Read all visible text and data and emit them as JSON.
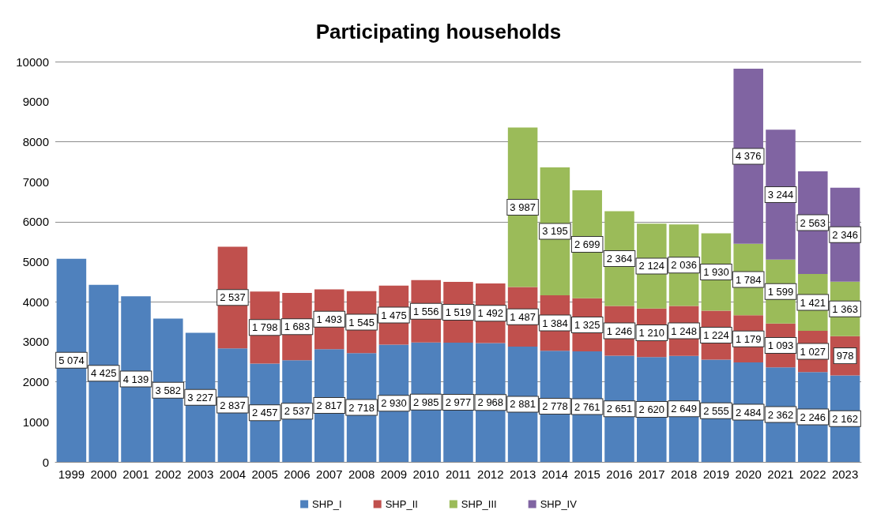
{
  "chart_data": {
    "type": "bar",
    "title": "Participating households",
    "stacked": true,
    "categories": [
      "1999",
      "2000",
      "2001",
      "2002",
      "2003",
      "2004",
      "2005",
      "2006",
      "2007",
      "2008",
      "2009",
      "2010",
      "2011",
      "2012",
      "2013",
      "2014",
      "2015",
      "2016",
      "2017",
      "2018",
      "2019",
      "2020",
      "2021",
      "2022",
      "2023"
    ],
    "series": [
      {
        "name": "SHP_I",
        "color": "#4f81bd",
        "values": [
          5074,
          4425,
          4139,
          3582,
          3227,
          2837,
          2457,
          2537,
          2817,
          2718,
          2930,
          2985,
          2977,
          2968,
          2881,
          2778,
          2761,
          2651,
          2620,
          2649,
          2555,
          2484,
          2362,
          2246,
          2162
        ],
        "value_labels": [
          "5 074",
          "4 425",
          "4 139",
          "3 582",
          "3 227",
          "2 837",
          "2 457",
          "2 537",
          "2 817",
          "2 718",
          "2 930",
          "2 985",
          "2 977",
          "2 968",
          "2 881",
          "2 778",
          "2 761",
          "2 651",
          "2 620",
          "2 649",
          "2 555",
          "2 484",
          "2 362",
          "2 246",
          "2 162"
        ]
      },
      {
        "name": "SHP_II",
        "color": "#c0504d",
        "values": [
          null,
          null,
          null,
          null,
          null,
          2537,
          1798,
          1683,
          1493,
          1545,
          1475,
          1556,
          1519,
          1492,
          1487,
          1384,
          1325,
          1246,
          1210,
          1248,
          1224,
          1179,
          1093,
          1027,
          978
        ],
        "value_labels": [
          null,
          null,
          null,
          null,
          null,
          "2 537",
          "1 798",
          "1 683",
          "1 493",
          "1 545",
          "1 475",
          "1 556",
          "1 519",
          "1 492",
          "1 487",
          "1 384",
          "1 325",
          "1 246",
          "1 210",
          "1 248",
          "1 224",
          "1 179",
          "1 093",
          "1 027",
          "978"
        ]
      },
      {
        "name": "SHP_III",
        "color": "#9bbb59",
        "values": [
          null,
          null,
          null,
          null,
          null,
          null,
          null,
          null,
          null,
          null,
          null,
          null,
          null,
          null,
          3987,
          3195,
          2699,
          2364,
          2124,
          2036,
          1930,
          1784,
          1599,
          1421,
          1363
        ],
        "value_labels": [
          null,
          null,
          null,
          null,
          null,
          null,
          null,
          null,
          null,
          null,
          null,
          null,
          null,
          null,
          "3 987",
          "3 195",
          "2 699",
          "2 364",
          "2 124",
          "2 036",
          "1 930",
          "1 784",
          "1 599",
          "1 421",
          "1 363"
        ]
      },
      {
        "name": "SHP_IV",
        "color": "#8064a2",
        "values": [
          null,
          null,
          null,
          null,
          null,
          null,
          null,
          null,
          null,
          null,
          null,
          null,
          null,
          null,
          null,
          null,
          null,
          null,
          null,
          null,
          null,
          4376,
          3244,
          2563,
          2346
        ],
        "value_labels": [
          null,
          null,
          null,
          null,
          null,
          null,
          null,
          null,
          null,
          null,
          null,
          null,
          null,
          null,
          null,
          null,
          null,
          null,
          null,
          null,
          null,
          "4 376",
          "3 244",
          "2 563",
          "2 346"
        ]
      }
    ],
    "ylim": [
      0,
      10000
    ],
    "yticks": [
      0,
      1000,
      2000,
      3000,
      4000,
      5000,
      6000,
      7000,
      8000,
      9000,
      10000
    ],
    "grid": "y",
    "legend": "bottom"
  }
}
